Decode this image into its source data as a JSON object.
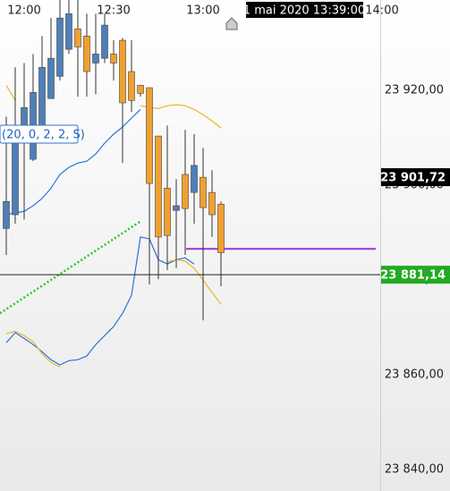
{
  "chart_data": {
    "type": "candlestick",
    "x": [
      714,
      717,
      720,
      723,
      726,
      729,
      732,
      735,
      738,
      741,
      744,
      747,
      750,
      753,
      756,
      759,
      762,
      765,
      768,
      771,
      774,
      777,
      780,
      783,
      786
    ],
    "open": [
      23890.9,
      23893.8,
      23908.9,
      23905.5,
      23912.6,
      23918.3,
      23923.0,
      23928.7,
      23933.0,
      23931.5,
      23925.8,
      23926.8,
      23927.7,
      23930.6,
      23924.0,
      23921.1,
      23920.6,
      23910.4,
      23899.4,
      23894.7,
      23902.3,
      23898.5,
      23901.7,
      23898.5,
      23896.0
    ],
    "high": [
      23914.5,
      23924.9,
      23925.8,
      23927.7,
      23931.5,
      23935.3,
      23939.1,
      23939.1,
      23939.1,
      23936.2,
      23936.2,
      23936.2,
      23930.6,
      23931.1,
      23930.6,
      23921.1,
      23920.6,
      23910.4,
      23912.6,
      23901.3,
      23911.7,
      23910.8,
      23907.9,
      23903.2,
      23896.6
    ],
    "low": [
      23885.3,
      23891.9,
      23892.8,
      23905.1,
      23912.6,
      23918.3,
      23922.1,
      23927.7,
      23918.7,
      23918.7,
      23919.2,
      23925.8,
      23922.1,
      23904.7,
      23915.5,
      23918.7,
      23879.1,
      23880.2,
      23882.1,
      23882.5,
      23885.3,
      23891.9,
      23871.5,
      23889.1,
      23878.7
    ],
    "close": [
      23896.6,
      23908.9,
      23916.4,
      23919.6,
      23924.9,
      23926.8,
      23935.3,
      23936.2,
      23929.2,
      23924.0,
      23927.7,
      23933.8,
      23925.8,
      23917.4,
      23917.9,
      23919.4,
      23900.4,
      23889.1,
      23889.4,
      23895.7,
      23895.1,
      23904.2,
      23895.3,
      23893.8,
      23885.8
    ],
    "up_color": "#4f7fb8",
    "down_color": "#f0a030",
    "overlays": [
      {
        "color": "#2f6fe0",
        "values": [
          23893.8,
          23894.2,
          23894.5,
          23895.7,
          23897.2,
          23899.4,
          23902.3,
          23903.8,
          23904.7,
          23905.1,
          23906.6,
          23908.9,
          23910.8,
          23912.3,
          23914.2,
          23916.0,
          null,
          null,
          null,
          null,
          null,
          null,
          null,
          null,
          null
        ]
      },
      {
        "color": "#2f6fe0",
        "values": [
          23866.8,
          23868.9,
          23867.7,
          23866.4,
          23864.9,
          23863.2,
          23862.1,
          23863.0,
          23863.2,
          23864.0,
          23866.4,
          23868.3,
          23870.2,
          23873.0,
          23876.8,
          23889.1,
          23888.7,
          23884.3,
          23883.4,
          23884.3,
          23884.7,
          23883.4,
          null,
          null,
          null
        ]
      },
      {
        "color": "#e8b820",
        "values": [
          23921.1,
          23917.9,
          null,
          null,
          null,
          null,
          null,
          null,
          null,
          null,
          null,
          null,
          null,
          null,
          null,
          23916.8,
          23916.4,
          23916.2,
          23916.8,
          23917.0,
          23916.8,
          23916.0,
          23914.9,
          23913.6,
          23912.1
        ]
      },
      {
        "color": "#e8b820",
        "values": [
          23868.7,
          23869.2,
          23868.3,
          23867.0,
          23864.5,
          23862.6,
          23861.7,
          null,
          null,
          null,
          null,
          null,
          null,
          null,
          null,
          null,
          null,
          null,
          23883.8,
          23884.3,
          23884.0,
          23882.5,
          23880.0,
          23877.4,
          23874.9
        ]
      }
    ],
    "trend_line": {
      "x": [
        711.9,
        759.3
      ],
      "values": [
        23873.0,
        23892.5
      ],
      "color": "#22cc22"
    },
    "level_line": {
      "x": [
        774.3,
        837.9
      ],
      "values": [
        23886.6,
        23886.6
      ],
      "color": "#9933dd"
    },
    "price_markers": [
      {
        "value": 23881.14,
        "label": "23 881,14",
        "color": "#22aa22",
        "line": true
      },
      {
        "value": 23901.72,
        "label": "23 901,72",
        "color": "#000000",
        "line": false
      }
    ],
    "xlim": [
      711.9,
      839.4
    ],
    "ylim": [
      23835.5,
      23939.1
    ],
    "xticks": [
      {
        "value": 720,
        "label": "12:00"
      },
      {
        "value": 750,
        "label": "12:30"
      },
      {
        "value": 780,
        "label": "13:00"
      },
      {
        "value": 840,
        "label": "14:00"
      }
    ],
    "yticks": [
      {
        "value": 23920,
        "label": "23 920,00"
      },
      {
        "value": 23900,
        "label": "23 900,00"
      },
      {
        "value": 23880,
        "label": "23 880,00"
      },
      {
        "value": 23860,
        "label": "23 860,00"
      },
      {
        "value": 23840,
        "label": "23 840,00"
      }
    ],
    "indicator_label": "(20, 0, 2, 2, S)",
    "cursor_label": "1 mai 2020 13:39:00"
  }
}
